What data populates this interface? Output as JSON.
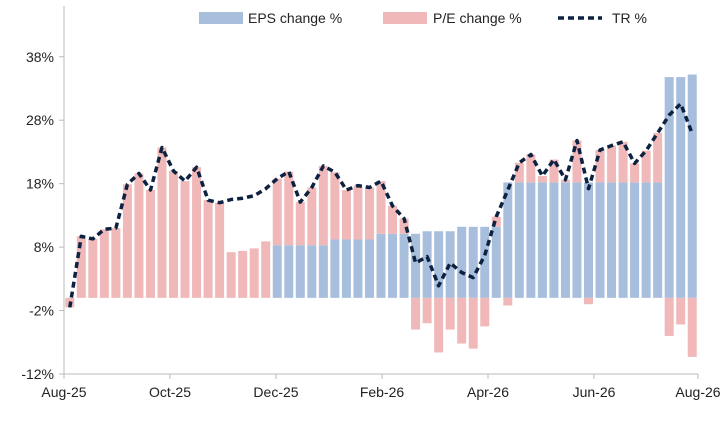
{
  "chart_data": {
    "type": "bar",
    "title": "",
    "xlabel": "",
    "ylabel": "",
    "ylim": [
      -12,
      46
    ],
    "y_ticks": [
      "-12%",
      "-2%",
      "8%",
      "18%",
      "28%",
      "38%"
    ],
    "y_tick_values": [
      -12,
      -2,
      8,
      18,
      28,
      38
    ],
    "x_tick_labels": [
      "Aug-25",
      "Oct-25",
      "Dec-25",
      "Feb-26",
      "Apr-26",
      "Jun-26",
      "Aug-26"
    ],
    "legend": {
      "placement": "top-right",
      "entries": [
        "EPS change %",
        "P/E change %",
        "TR %"
      ]
    },
    "colors": {
      "eps": "#a8bedd",
      "pe": "#f0b8b8",
      "tr": "#0d2240",
      "axis": "#bbbbbb"
    },
    "x": [
      "Aug-25",
      "Aug-25",
      "Aug-25",
      "Aug-25",
      "Aug-25",
      "Sep-25",
      "Sep-25",
      "Sep-25",
      "Sep-25",
      "Oct-25",
      "Oct-25",
      "Oct-25",
      "Oct-25",
      "Oct-25",
      "Nov-25",
      "Nov-25",
      "Nov-25",
      "Nov-25",
      "Dec-25",
      "Dec-25",
      "Dec-25",
      "Dec-25",
      "Dec-25",
      "Jan-26",
      "Jan-26",
      "Jan-26",
      "Jan-26",
      "Feb-26",
      "Feb-26",
      "Feb-26",
      "Feb-26",
      "Mar-26",
      "Mar-26",
      "Mar-26",
      "Mar-26",
      "Mar-26",
      "Apr-26",
      "Apr-26",
      "Apr-26",
      "Apr-26",
      "May-26",
      "May-26",
      "May-26",
      "May-26",
      "Jun-26",
      "Jun-26",
      "Jun-26",
      "Jun-26",
      "Jun-26",
      "Jul-26",
      "Jul-26",
      "Jul-26",
      "Jul-26",
      "Aug-26",
      "Aug-26"
    ],
    "series": [
      {
        "name": "EPS change %",
        "values": [
          0,
          0,
          0,
          0,
          0,
          0,
          0,
          0,
          0,
          0,
          0,
          0,
          0,
          0,
          0,
          0,
          0,
          0,
          8.3,
          8.3,
          8.3,
          8.3,
          8.3,
          9.2,
          9.2,
          9.2,
          9.2,
          10.1,
          10.1,
          10.1,
          10.1,
          10.5,
          10.5,
          10.5,
          11.2,
          11.2,
          11.2,
          11.2,
          18.2,
          18.2,
          18.2,
          18.2,
          18.2,
          18.2,
          18.2,
          18.2,
          18.2,
          18.2,
          18.2,
          18.2,
          18.2,
          18.2,
          34.8,
          34.8,
          35.2
        ]
      },
      {
        "name": "P/E change %",
        "values": [
          -1.5,
          9.7,
          9.3,
          10.8,
          11,
          17.9,
          19.6,
          17,
          23.7,
          20,
          18.4,
          20.6,
          15.4,
          15,
          7.2,
          7.4,
          7.8,
          8.9,
          10.5,
          11.6,
          6.8,
          9.1,
          12.5,
          10.6,
          7.8,
          8.5,
          8.2,
          8.3,
          4.4,
          2.4,
          -5,
          -4,
          -8.6,
          -5,
          -7.2,
          -8,
          -4.5,
          1.6,
          -1.2,
          3.1,
          4.4,
          1,
          3.6,
          0.4,
          6.6,
          -1,
          5.1,
          5.8,
          6.4,
          3,
          5,
          7.8,
          -6,
          -4.2,
          -9.3
        ]
      },
      {
        "name": "TR %",
        "values": [
          -1.5,
          9.7,
          9.3,
          10.8,
          11,
          17.9,
          19.6,
          17,
          23.7,
          20,
          18.4,
          20.6,
          15.4,
          15,
          15.5,
          15.7,
          16.1,
          17.2,
          18.8,
          19.9,
          15.1,
          17.4,
          20.8,
          19.8,
          17,
          17.7,
          17.4,
          18.4,
          14.5,
          12.5,
          5.5,
          6.5,
          1.9,
          5.5,
          4,
          3.2,
          6.7,
          12.8,
          17,
          21.3,
          22.6,
          19.2,
          21.8,
          18.6,
          24.8,
          17.2,
          23.3,
          24,
          24.6,
          21.2,
          23.2,
          26,
          28.8,
          30.6,
          25.9
        ]
      }
    ]
  }
}
